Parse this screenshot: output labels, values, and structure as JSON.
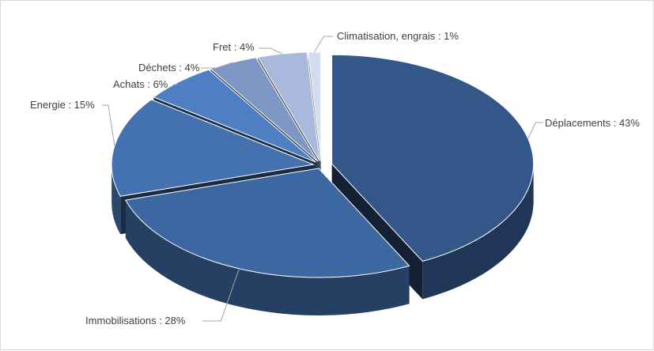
{
  "chart_data": {
    "type": "pie",
    "style": "3d-exploded",
    "title": "",
    "slices": [
      {
        "label": "Déplacements",
        "value": 43,
        "text": "Déplacements : 43%",
        "color": "#34578a"
      },
      {
        "label": "Immobilisations",
        "value": 28,
        "text": "Immobilisations : 28%",
        "color": "#3d67a0"
      },
      {
        "label": "Energie",
        "value": 15,
        "text": "Energie : 15%",
        "color": "#4472b0"
      },
      {
        "label": "Achats",
        "value": 6,
        "text": "Achats : 6%",
        "color": "#4d7fc2"
      },
      {
        "label": "Déchets",
        "value": 4,
        "text": "Déchets : 4%",
        "color": "#7e98c6"
      },
      {
        "label": "Fret",
        "value": 4,
        "text": "Fret : 4%",
        "color": "#a9b9dc"
      },
      {
        "label": "Climatisation, engrais",
        "value": 1,
        "text": "Climatisation, engrais : 1%",
        "color": "#d3ddef"
      }
    ],
    "legend": "none"
  }
}
